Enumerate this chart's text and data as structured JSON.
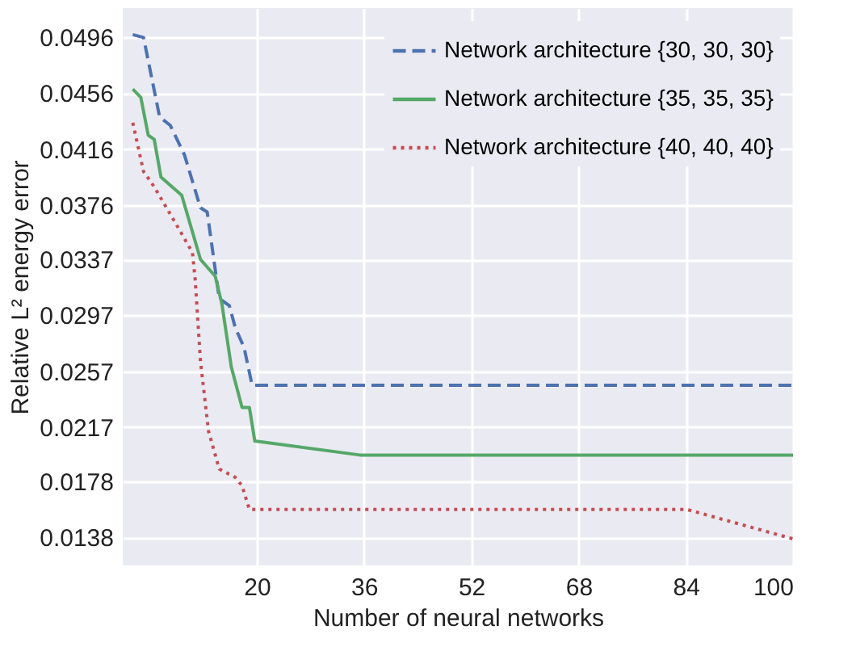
{
  "chart_data": {
    "type": "line",
    "xlabel": "Number of neural networks",
    "ylabel": "Relative L² energy error",
    "xlim": [
      0,
      100
    ],
    "xticks": [
      20,
      36,
      52,
      68,
      84,
      100
    ],
    "ylim": [
      0.0118,
      0.0517
    ],
    "yticks": [
      0.0138,
      0.0178,
      0.0217,
      0.0257,
      0.0297,
      0.0337,
      0.0376,
      0.0416,
      0.0456,
      0.0496
    ],
    "grid": true,
    "legend": "top right",
    "marker": "none",
    "series": [
      {
        "name": "Network architecture {30, 30, 30}",
        "color": "#4c72b0",
        "line_style": "dashed",
        "x": [
          1.5,
          3.1,
          5.5,
          7.1,
          9.2,
          11.6,
          12.6,
          14.4,
          15.9,
          16.8,
          18.1,
          19.3,
          100
        ],
        "values": [
          0.0498,
          0.0496,
          0.0439,
          0.0433,
          0.0412,
          0.0374,
          0.0371,
          0.0309,
          0.0304,
          0.0288,
          0.0274,
          0.0247,
          0.0247
        ]
      },
      {
        "name": "Network architecture {35, 35, 35}",
        "color": "#55a868",
        "line_style": "solid",
        "x": [
          1.5,
          2.7,
          3.8,
          4.7,
          5.7,
          8.8,
          11.6,
          13.8,
          14.8,
          16.2,
          17.8,
          18.9,
          19.7,
          35.4,
          100
        ],
        "values": [
          0.0459,
          0.0453,
          0.0426,
          0.0423,
          0.0396,
          0.0383,
          0.0337,
          0.0325,
          0.0305,
          0.026,
          0.0231,
          0.0231,
          0.0207,
          0.0197,
          0.0197
        ]
      },
      {
        "name": "Network architecture {40, 40, 40}",
        "color": "#c44e52",
        "line_style": "dotted",
        "x": [
          1.5,
          3.1,
          4.7,
          8.0,
          10.4,
          10.8,
          11.6,
          12.8,
          14.4,
          16.8,
          17.8,
          18.9,
          84.2,
          100
        ],
        "values": [
          0.0435,
          0.04,
          0.0389,
          0.0362,
          0.0342,
          0.0323,
          0.0264,
          0.0214,
          0.0187,
          0.0181,
          0.0175,
          0.0158,
          0.0158,
          0.0137
        ]
      }
    ]
  }
}
